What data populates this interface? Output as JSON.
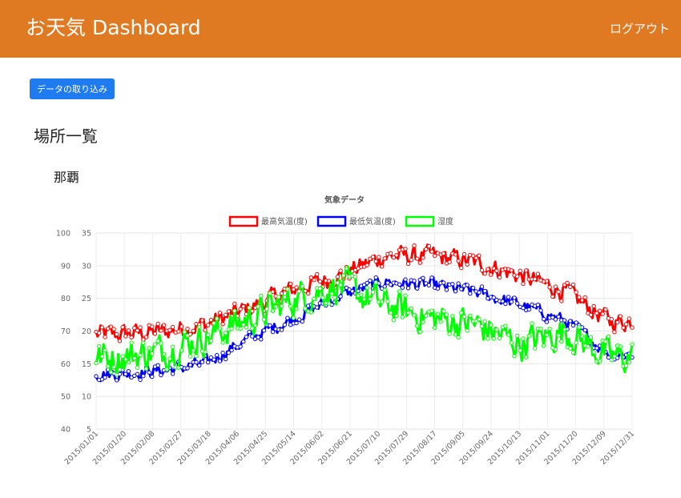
{
  "header": {
    "title": "お天気 Dashboard",
    "logout_label": "ログアウト"
  },
  "actions": {
    "import_label": "データの取り込み"
  },
  "section": {
    "title": "場所一覧"
  },
  "place": {
    "name": "那覇"
  },
  "colors": {
    "header": "#e07a22",
    "button": "#1e7cf0",
    "max_temp": "#ff0000",
    "min_temp": "#0000ff",
    "humidity": "#00ff00"
  },
  "chart_data": {
    "type": "line",
    "title": "気象データ",
    "legend_position": "top",
    "grid": true,
    "x_start": "2015-01-01",
    "x_end": "2015-12-31",
    "x_tick_labels": [
      "2015/01/01",
      "2015/01/20",
      "2015/02/08",
      "2015/02/27",
      "2015/03/18",
      "2015/04/06",
      "2015/04/25",
      "2015/05/14",
      "2015/06/02",
      "2015/06/21",
      "2015/07/10",
      "2015/07/29",
      "2015/08/17",
      "2015/09/05",
      "2015/09/24",
      "2015/10/13",
      "2015/11/01",
      "2015/11/20",
      "2015/12/09",
      "2015/12/31"
    ],
    "y_left": {
      "label": "",
      "ticks": [
        40,
        50,
        60,
        70,
        80,
        90,
        100
      ],
      "range": [
        40,
        100
      ]
    },
    "y_right": {
      "label": "",
      "ticks": [
        5,
        10,
        15,
        20,
        25,
        30,
        35
      ],
      "range": [
        5,
        35
      ]
    },
    "series": [
      {
        "name": "最高気温(度)",
        "axis": "right",
        "color": "#ff0000",
        "monthly_values": [
          19.5,
          20.0,
          21.0,
          23.5,
          26.5,
          28.5,
          31.5,
          31.5,
          30.5,
          28.5,
          26.0,
          21.5
        ]
      },
      {
        "name": "最低気温(度)",
        "axis": "right",
        "color": "#0000ff",
        "monthly_values": [
          13.5,
          14.0,
          15.0,
          19.0,
          22.0,
          25.5,
          27.5,
          27.0,
          26.0,
          24.0,
          21.5,
          16.5
        ]
      },
      {
        "name": "湿度",
        "axis": "left",
        "color": "#00ff00",
        "monthly_values": [
          62,
          64,
          68,
          74,
          80,
          84,
          78,
          74,
          72,
          66,
          70,
          62
        ]
      }
    ]
  }
}
